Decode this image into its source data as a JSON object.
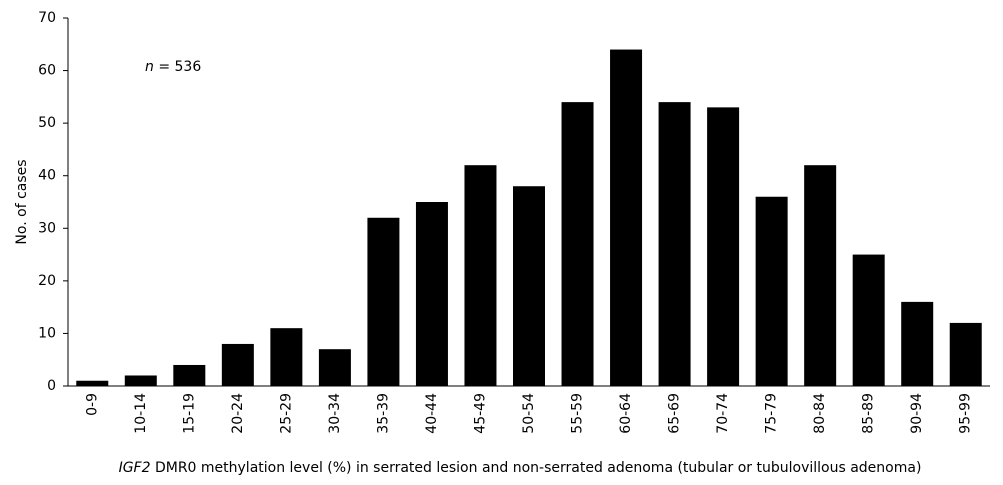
{
  "chart_data": {
    "type": "bar",
    "y_label": "No. of cases",
    "x_label": "IGF2 DMR0 methylation level (%) in serrated lesion and non-serrated adenoma (tubular or tubulovillous adenoma)",
    "annotation": "n = 536",
    "categories": [
      "0-9",
      "10-14",
      "15-19",
      "20-24",
      "25-29",
      "30-34",
      "35-39",
      "40-44",
      "45-49",
      "50-54",
      "55-59",
      "60-64",
      "65-69",
      "70-74",
      "75-79",
      "80-84",
      "85-89",
      "90-94",
      "95-99"
    ],
    "values": [
      1,
      2,
      4,
      8,
      11,
      7,
      32,
      35,
      42,
      38,
      54,
      64,
      54,
      53,
      36,
      42,
      25,
      16,
      12
    ],
    "color": "#000000",
    "ylim": [
      0,
      70
    ],
    "yticks": [
      0,
      10,
      20,
      30,
      40,
      50,
      60,
      70
    ],
    "grid": false
  }
}
